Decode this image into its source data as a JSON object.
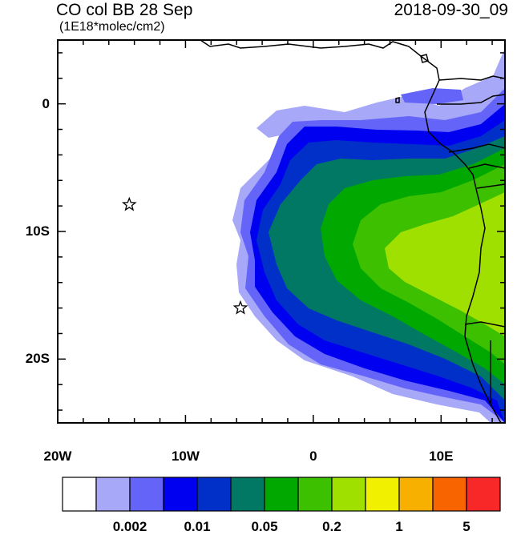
{
  "header": {
    "title": "CO col BB 28 Sep",
    "units": "(1E18*molec/cm2)",
    "datetime": "2018-09-30_09"
  },
  "map": {
    "extent": {
      "lon_min": -20,
      "lon_max": 15,
      "lat_min": -25,
      "lat_max": 5
    },
    "x_ticks": [
      {
        "lon": -20,
        "label": "20W"
      },
      {
        "lon": -10,
        "label": "10W"
      },
      {
        "lon": 0,
        "label": "0"
      },
      {
        "lon": 10,
        "label": "10E"
      }
    ],
    "y_ticks": [
      {
        "lat": 0,
        "label": "0"
      },
      {
        "lat": -10,
        "label": "10S"
      },
      {
        "lat": -20,
        "label": "20S"
      }
    ],
    "markers": [
      {
        "name": "star-ascension",
        "lon": -14.4,
        "lat": -7.9
      },
      {
        "name": "star-st-helena",
        "lon": -5.7,
        "lat": -16.0
      }
    ]
  },
  "colorbar": {
    "colors": [
      "#ffffff",
      "#a8a8f8",
      "#6464f8",
      "#0000f0",
      "#0030c8",
      "#007864",
      "#00a800",
      "#3cc000",
      "#a0e000",
      "#f0f000",
      "#f8b000",
      "#f86400",
      "#f82828"
    ],
    "labels": [
      {
        "boundary": 2,
        "text": "0.002"
      },
      {
        "boundary": 4,
        "text": "0.01"
      },
      {
        "boundary": 6,
        "text": "0.05"
      },
      {
        "boundary": 8,
        "text": "0.2"
      },
      {
        "boundary": 10,
        "text": "1"
      },
      {
        "boundary": 12,
        "text": "5"
      }
    ]
  }
}
